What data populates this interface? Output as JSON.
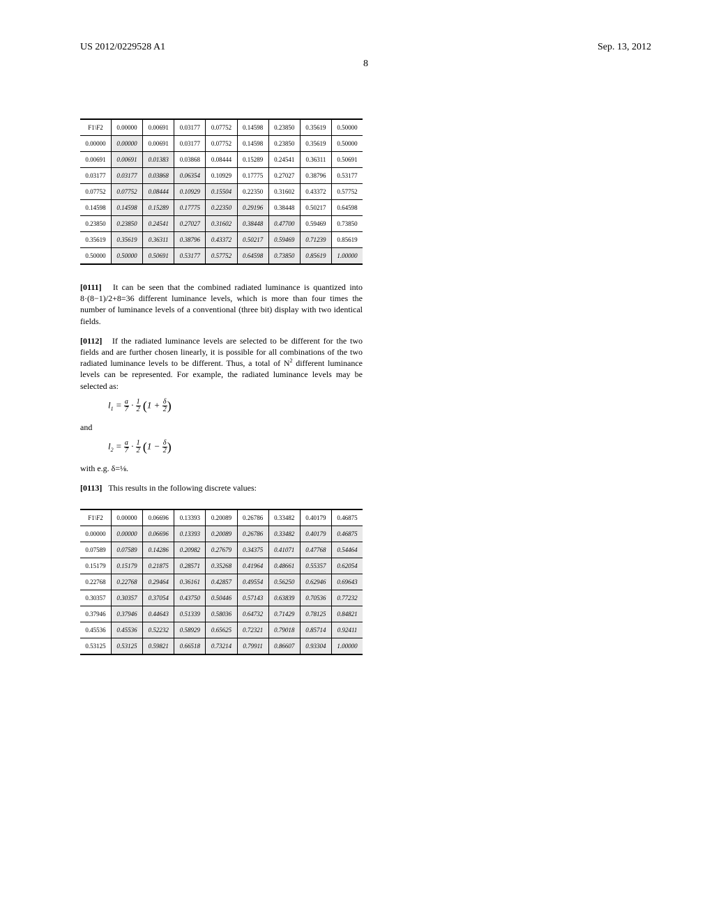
{
  "header": {
    "left": "US 2012/0229528 A1",
    "right": "Sep. 13, 2012",
    "page_number": "8"
  },
  "table1": {
    "header_label": "F1\\F2",
    "col_headers": [
      "0.00000",
      "0.00691",
      "0.03177",
      "0.07752",
      "0.14598",
      "0.23850",
      "0.35619",
      "0.50000"
    ],
    "row_headers": [
      "0.00000",
      "0.00691",
      "0.03177",
      "0.07752",
      "0.14598",
      "0.23850",
      "0.35619",
      "0.50000"
    ],
    "rows": [
      [
        "0.00000",
        "0.00691",
        "0.03177",
        "0.07752",
        "0.14598",
        "0.23850",
        "0.35619",
        "0.50000"
      ],
      [
        "0.00691",
        "0.01383",
        "0.03868",
        "0.08444",
        "0.15289",
        "0.24541",
        "0.36311",
        "0.50691"
      ],
      [
        "0.03177",
        "0.03868",
        "0.06354",
        "0.10929",
        "0.17775",
        "0.27027",
        "0.38796",
        "0.53177"
      ],
      [
        "0.07752",
        "0.08444",
        "0.10929",
        "0.15504",
        "0.22350",
        "0.31602",
        "0.43372",
        "0.57752"
      ],
      [
        "0.14598",
        "0.15289",
        "0.17775",
        "0.22350",
        "0.29196",
        "0.38448",
        "0.50217",
        "0.64598"
      ],
      [
        "0.23850",
        "0.24541",
        "0.27027",
        "0.31602",
        "0.38448",
        "0.47700",
        "0.59469",
        "0.73850"
      ],
      [
        "0.35619",
        "0.36311",
        "0.38796",
        "0.43372",
        "0.50217",
        "0.59469",
        "0.71239",
        "0.85619"
      ],
      [
        "0.50000",
        "0.50691",
        "0.53177",
        "0.57752",
        "0.64598",
        "0.73850",
        "0.85619",
        "1.00000"
      ]
    ],
    "shaded_upto": [
      7,
      0,
      1,
      2,
      3,
      4,
      5,
      6,
      7
    ]
  },
  "paragraphs": {
    "p1_num": "[0111]",
    "p1_text": "It can be seen that the combined radiated luminance is quantized into 8·(8−1)/2+8=36 different luminance levels, which is more than four times the number of luminance levels of a conventional (three bit) display with two identical fields.",
    "p2_num": "[0112]",
    "p2_text_a": "If the radiated luminance levels are selected to be different for the two fields and are further chosen linearly, it is possible for all combinations of the two radiated luminance levels to be different. Thus, a total of N",
    "p2_text_b": " different luminance levels can be represented. For example, the radiated luminance levels may be selected as:",
    "and_label": "and",
    "p3_prefix": "with e.g. δ=⅛.",
    "p3_num": "[0113]",
    "p3_text": "This results in the following discrete values:"
  },
  "formula1": {
    "lhs": "l",
    "sub": "1",
    "a": "a",
    "seven": "7",
    "one": "1",
    "two": "2",
    "delta": "δ",
    "op": "+"
  },
  "formula2": {
    "lhs": "l",
    "sub": "2",
    "a": "a",
    "seven": "7",
    "one": "1",
    "two": "2",
    "delta": "δ",
    "op": "−"
  },
  "table2": {
    "header_label": "F1\\F2",
    "col_headers": [
      "0.00000",
      "0.06696",
      "0.13393",
      "0.20089",
      "0.26786",
      "0.33482",
      "0.40179",
      "0.46875"
    ],
    "row_headers": [
      "0.00000",
      "0.07589",
      "0.15179",
      "0.22768",
      "0.30357",
      "0.37946",
      "0.45536",
      "0.53125"
    ],
    "rows": [
      [
        "0.00000",
        "0.06696",
        "0.13393",
        "0.20089",
        "0.26786",
        "0.33482",
        "0.40179",
        "0.46875"
      ],
      [
        "0.07589",
        "0.14286",
        "0.20982",
        "0.27679",
        "0.34375",
        "0.41071",
        "0.47768",
        "0.54464"
      ],
      [
        "0.15179",
        "0.21875",
        "0.28571",
        "0.35268",
        "0.41964",
        "0.48661",
        "0.55357",
        "0.62054"
      ],
      [
        "0.22768",
        "0.29464",
        "0.36161",
        "0.42857",
        "0.49554",
        "0.56250",
        "0.62946",
        "0.69643"
      ],
      [
        "0.30357",
        "0.37054",
        "0.43750",
        "0.50446",
        "0.57143",
        "0.63839",
        "0.70536",
        "0.77232"
      ],
      [
        "0.37946",
        "0.44643",
        "0.51339",
        "0.58036",
        "0.64732",
        "0.71429",
        "0.78125",
        "0.84821"
      ],
      [
        "0.45536",
        "0.52232",
        "0.58929",
        "0.65625",
        "0.72321",
        "0.79018",
        "0.85714",
        "0.92411"
      ],
      [
        "0.53125",
        "0.59821",
        "0.66518",
        "0.73214",
        "0.79911",
        "0.86607",
        "0.93304",
        "1.00000"
      ]
    ],
    "shaded_upto": [
      7,
      7,
      7,
      7,
      7,
      7,
      7,
      7,
      7
    ]
  },
  "style": {
    "page_bg": "#ffffff",
    "text_color": "#000000",
    "shade_color": "#e9e9e9",
    "table_font_size": 9,
    "body_font_size": 12
  }
}
